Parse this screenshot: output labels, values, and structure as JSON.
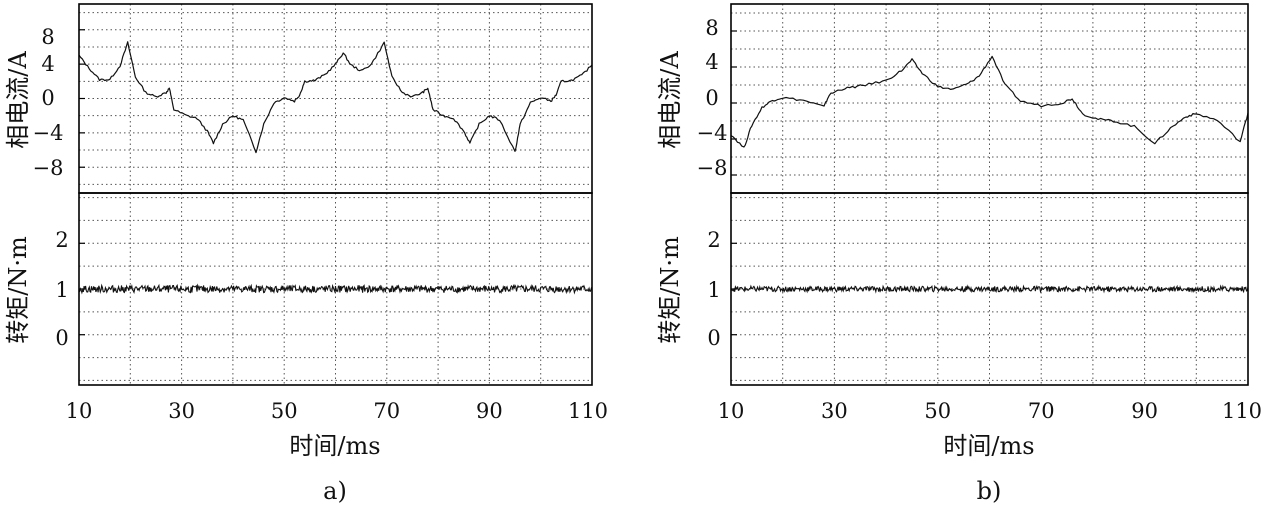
{
  "chart_data": [
    {
      "type": "line",
      "panel_label": "a)",
      "xlabel": "时间/ms",
      "x_ticks": [
        "10",
        "30",
        "50",
        "70",
        "90",
        "110"
      ],
      "xlim": [
        10,
        110
      ],
      "x_grid_step": 10,
      "current": {
        "ylabel": "相电流/A",
        "ylim": [
          -11,
          11
        ],
        "y_ticks": [
          "8",
          "4",
          "0",
          "−4",
          "−8"
        ],
        "y_tick_values": [
          8,
          4,
          0,
          -4,
          -8
        ],
        "y_grid_step": 2,
        "x": [
          10,
          12,
          14,
          16,
          18,
          19.5,
          21,
          23,
          25,
          27,
          27.6,
          28.5,
          31,
          33,
          35,
          36.2,
          38,
          40,
          42,
          44.5,
          46,
          48,
          50,
          52,
          53,
          54,
          56,
          58,
          60,
          61.5,
          63,
          65,
          67,
          69.5,
          71,
          73,
          75,
          77,
          78,
          79,
          81,
          83,
          85,
          86.2,
          88,
          90,
          92,
          95,
          96,
          98,
          100,
          102,
          103,
          104,
          106,
          108,
          110
        ],
        "y": [
          5,
          3.5,
          2.2,
          2.2,
          3.8,
          6.5,
          2.5,
          0.7,
          0.2,
          0.7,
          1.2,
          -1.3,
          -2,
          -2.3,
          -3.8,
          -5.2,
          -3,
          -2,
          -2.5,
          -6.2,
          -3,
          -0.5,
          0.1,
          -0.3,
          0.4,
          2,
          2.1,
          2.8,
          4,
          5.3,
          3.9,
          3.2,
          4,
          6.5,
          2.5,
          0.7,
          0.2,
          0.7,
          1.2,
          -1.3,
          -2,
          -2.3,
          -3.8,
          -5.2,
          -3,
          -2,
          -2.5,
          -6.2,
          -3,
          -0.5,
          0.1,
          -0.3,
          0.4,
          2,
          2.1,
          2.7,
          3.9
        ]
      },
      "torque": {
        "ylabel": "转矩/N·m",
        "ylim": [
          -1.1,
          3.1
        ],
        "y_ticks": [
          "2",
          "1",
          "0"
        ],
        "y_tick_values": [
          2,
          1,
          0
        ],
        "y_grid_step": 0.5,
        "x": [
          10,
          110
        ],
        "y": [
          1.0,
          1.0
        ],
        "ripple_amplitude": 0.08
      }
    },
    {
      "type": "line",
      "panel_label": "b)",
      "xlabel": "时间/ms",
      "x_ticks": [
        "10",
        "30",
        "50",
        "70",
        "90",
        "110"
      ],
      "xlim": [
        10,
        110
      ],
      "x_grid_step": 10,
      "current": {
        "ylabel": "相电流/A",
        "ylim": [
          -10,
          11
        ],
        "y_ticks": [
          "8",
          "4",
          "0",
          "−4",
          "−8"
        ],
        "y_tick_values": [
          8,
          4,
          0,
          -4,
          -8
        ],
        "y_grid_step": 2,
        "x": [
          10,
          12.5,
          14,
          16,
          18,
          20,
          24,
          28,
          29,
          31,
          34,
          36,
          40,
          43,
          45,
          47,
          50,
          53,
          56,
          58,
          60.5,
          63,
          66,
          70,
          74,
          76,
          78,
          81,
          84,
          88,
          92,
          95,
          98,
          100,
          104,
          108.5,
          110
        ],
        "y": [
          -3.5,
          -5,
          -2.5,
          -0.5,
          0.3,
          0.6,
          0.3,
          -0.4,
          0.9,
          1.5,
          1.8,
          2,
          2.5,
          3.6,
          4.8,
          3.3,
          1.8,
          1.5,
          2.2,
          3,
          5.2,
          2,
          0.2,
          -0.3,
          0,
          0.5,
          -1.2,
          -1.8,
          -2,
          -2.6,
          -4.5,
          -2.8,
          -1.5,
          -1.2,
          -1.9,
          -4.3,
          -1.1
        ]
      },
      "torque": {
        "ylabel": "转矩/N·m",
        "ylim": [
          -1.1,
          3.1
        ],
        "y_ticks": [
          "2",
          "1",
          "0"
        ],
        "y_tick_values": [
          2,
          1,
          0
        ],
        "y_grid_step": 0.5,
        "x": [
          10,
          110
        ],
        "y": [
          1.0,
          1.0
        ],
        "ripple_amplitude": 0.06
      }
    }
  ]
}
